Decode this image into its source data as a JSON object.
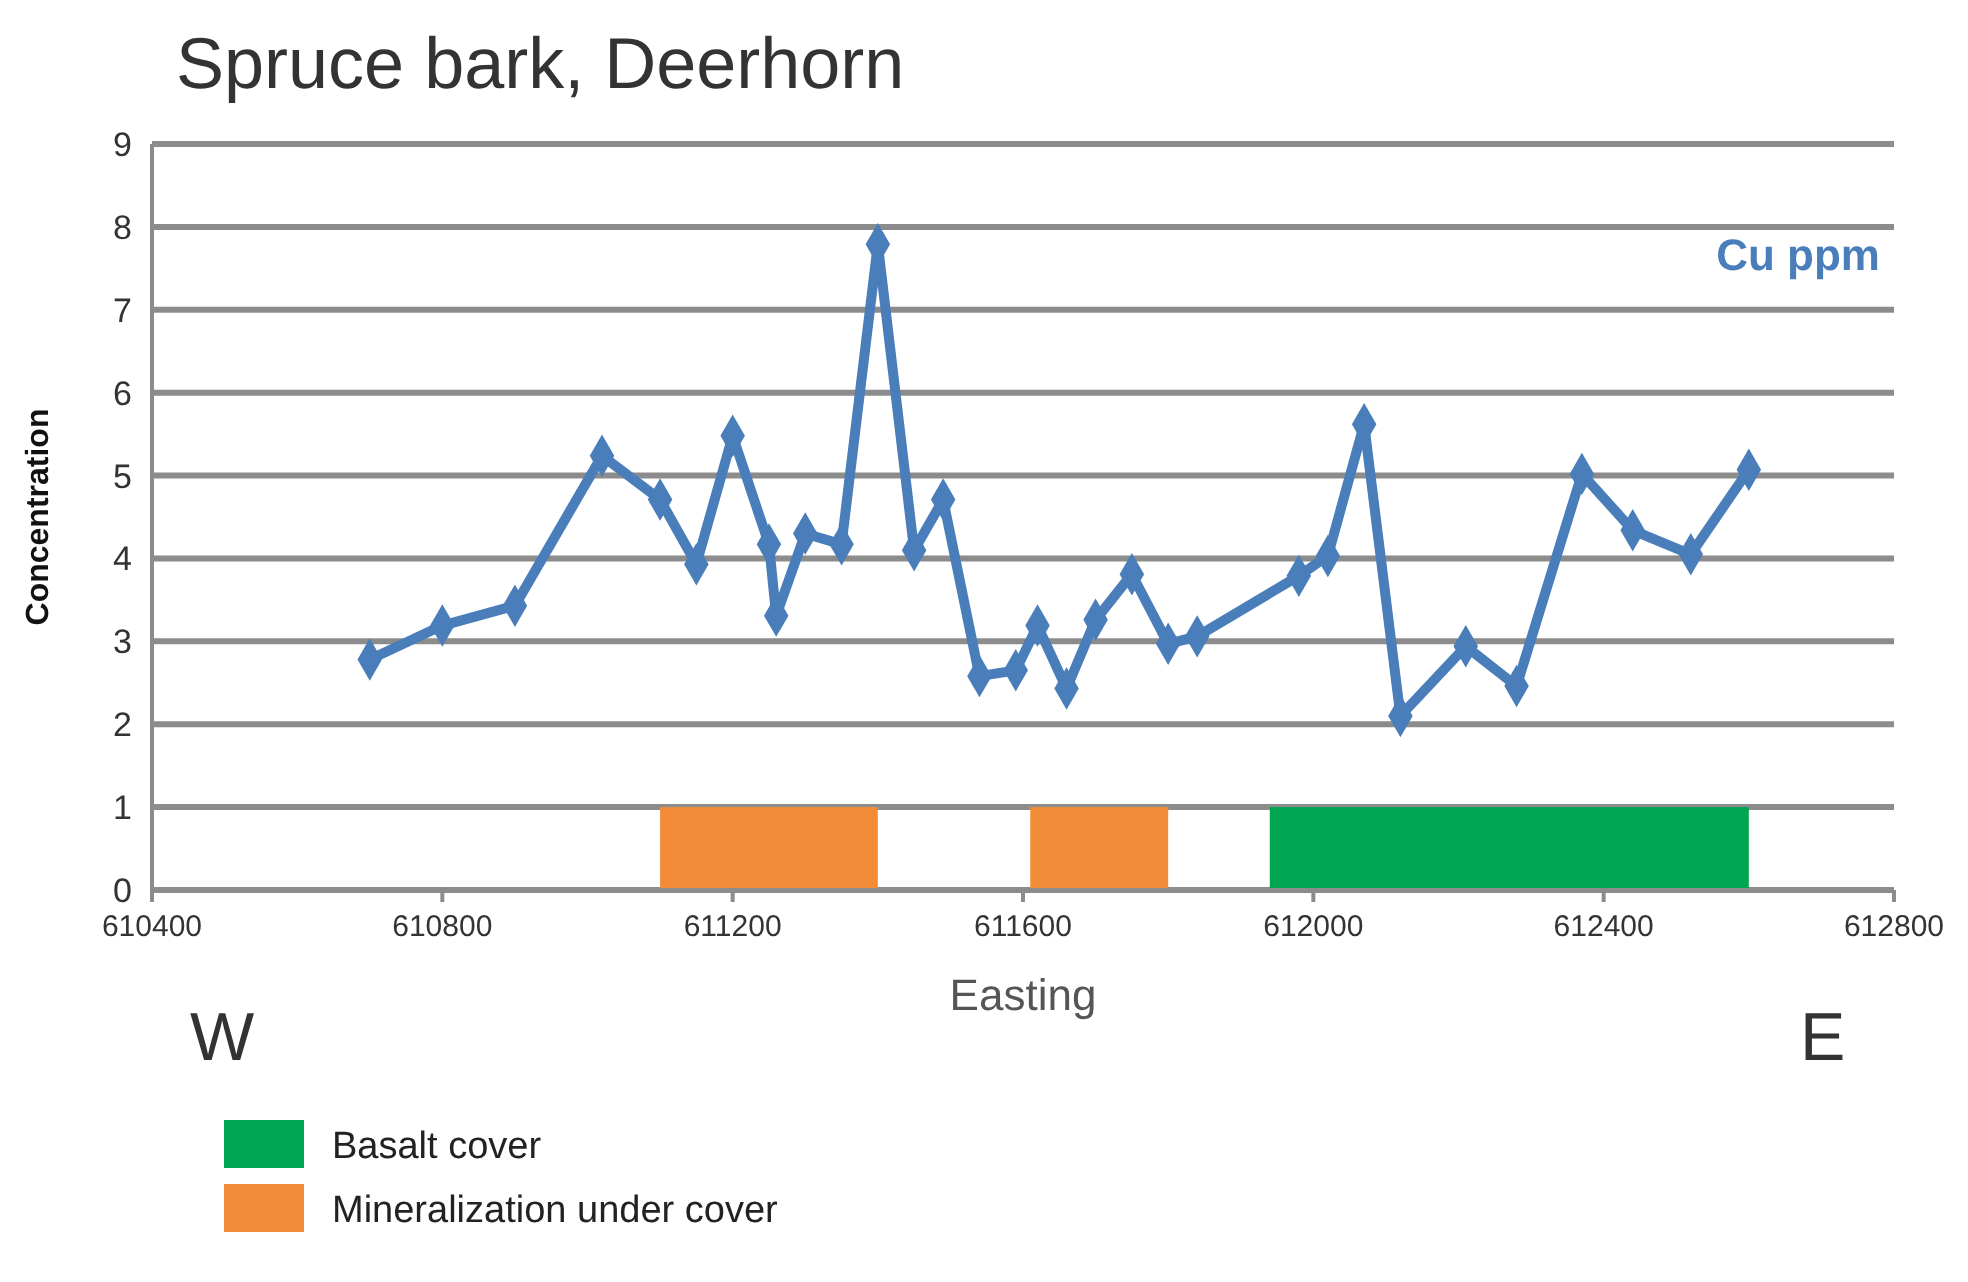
{
  "chart_data": {
    "type": "line",
    "title": "Spruce bark, Deerhorn",
    "xlabel": "Easting",
    "ylabel": "Concentration",
    "xlim": [
      610400,
      612800
    ],
    "xticks": [
      610400,
      610800,
      611200,
      611600,
      612000,
      612400,
      612800
    ],
    "ylim": [
      0,
      9
    ],
    "yticks": [
      0,
      1,
      2,
      3,
      4,
      5,
      6,
      7,
      8,
      9
    ],
    "grid": "y",
    "legend": "bottom left",
    "marker": "diamond",
    "line_style": "solid",
    "series": [
      {
        "name": "Cu ppm",
        "color": "#4a7ebb",
        "x": [
          610700,
          610800,
          610900,
          611020,
          611100,
          611150,
          611200,
          611250,
          611260,
          611300,
          611350,
          611400,
          611450,
          611490,
          611540,
          611590,
          611620,
          611660,
          611700,
          611750,
          611800,
          611840,
          611980,
          612020,
          612070,
          612120,
          612210,
          612280,
          612370,
          612440,
          612520,
          612600
        ],
        "values": [
          2.78,
          3.19,
          3.43,
          5.24,
          4.71,
          3.93,
          5.48,
          4.17,
          3.31,
          4.3,
          4.17,
          7.79,
          4.1,
          4.71,
          2.58,
          2.65,
          3.19,
          2.43,
          3.26,
          3.81,
          2.97,
          3.06,
          3.79,
          4.03,
          5.62,
          2.1,
          2.94,
          2.46,
          5.02,
          4.34,
          4.05,
          5.07
        ]
      }
    ],
    "bands": [
      {
        "axis": "x",
        "from": 611100,
        "to": 611400,
        "label": "Mineralization under cover",
        "color": "#f28c38"
      },
      {
        "axis": "x",
        "from": 611610,
        "to": 611800,
        "color": "#f28c38"
      },
      {
        "axis": "x",
        "from": 611940,
        "to": 612600,
        "label": "Basalt cover",
        "color": "#00a651"
      }
    ],
    "annotations": [
      "W",
      "E"
    ]
  }
}
